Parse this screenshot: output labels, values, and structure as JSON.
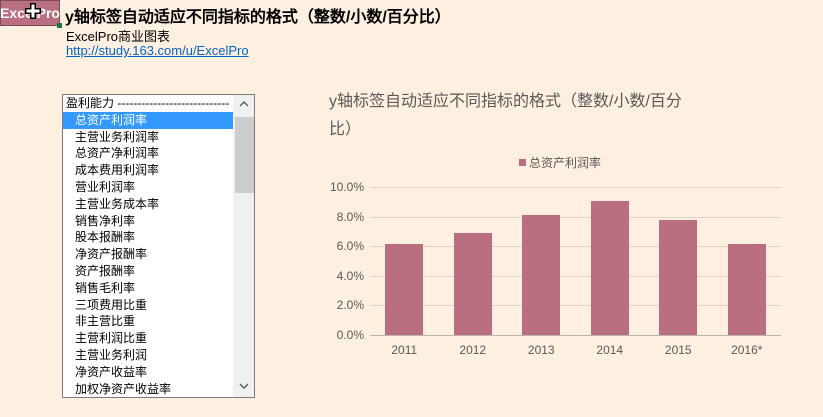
{
  "header": {
    "logo_text": "ExcelPro",
    "title": "y轴标签自动适应不同指标的格式（整数/小数/百分比）",
    "subtitle": "ExcelPro商业图表",
    "link": "http://study.163.com/u/ExcelPro"
  },
  "listbox": {
    "selected_index": 1,
    "items": [
      "盈利能力 ----------------------------",
      "总资产利润率",
      "主营业务利润率",
      "总资产净利润率",
      "成本费用利润率",
      "营业利润率",
      "主营业务成本率",
      "销售净利率",
      "股本报酬率",
      "净资产报酬率",
      "资产报酬率",
      "销售毛利率",
      "三项费用比重",
      "非主营比重",
      "主营利润比重",
      "主营业务利润",
      "净资产收益率",
      "加权净资产收益率"
    ],
    "scroll_up_icon": "chevron-up-icon",
    "scroll_down_icon": "chevron-down-icon"
  },
  "colors": {
    "background": "#fef0e0",
    "bar": "#b96f7f",
    "selection": "#3399ff",
    "text_gray": "#595959"
  },
  "chart_data": {
    "type": "bar",
    "title": "y轴标签自动适应不同指标的格式（整数/小数/百分比）",
    "legend": [
      "总资产利润率"
    ],
    "legend_position": "top",
    "categories": [
      "2011",
      "2012",
      "2013",
      "2014",
      "2015",
      "2016*"
    ],
    "series": [
      {
        "name": "总资产利润率",
        "values": [
          0.0615,
          0.069,
          0.081,
          0.0905,
          0.078,
          0.0615
        ]
      }
    ],
    "yticks": [
      "0.0%",
      "2.0%",
      "4.0%",
      "6.0%",
      "8.0%",
      "10.0%"
    ],
    "ylim": [
      0,
      0.1
    ],
    "xlabel": "",
    "ylabel": "",
    "grid": true
  }
}
